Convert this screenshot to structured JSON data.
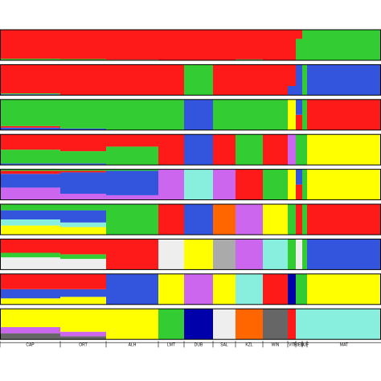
{
  "chart_data": {
    "type": "structure",
    "populations": [
      "CAP",
      "ORT",
      "ALH",
      "LMT",
      "DUB",
      "SAL",
      "KZL",
      "WIN",
      "VIT",
      "RIED",
      "SUF",
      "MAT"
    ],
    "sizes": [
      75,
      57,
      65,
      32,
      36,
      28,
      34,
      31,
      10,
      8,
      6,
      92
    ],
    "ylim": [
      0,
      100
    ],
    "panels": [
      [
        [
          [
            "#33cc33",
            5
          ],
          [
            "#ff1a1a",
            95
          ]
        ],
        [
          [
            "#33cc33",
            4
          ],
          [
            "#ff1a1a",
            96
          ]
        ],
        [
          [
            "#33cc33",
            2
          ],
          [
            "#ff1a1a",
            98
          ]
        ],
        [
          [
            "#ff1a1a",
            100
          ]
        ],
        [
          [
            "#ff1a1a",
            100
          ]
        ],
        [
          [
            "#ff1a1a",
            100
          ]
        ],
        [
          [
            "#33cc33",
            3
          ],
          [
            "#ff1a1a",
            97
          ]
        ],
        [
          [
            "#ff1a1a",
            100
          ]
        ],
        [
          [
            "#ff1a1a",
            100
          ]
        ],
        [
          [
            "#33cc33",
            70
          ],
          [
            "#ff1a1a",
            30
          ]
        ],
        [
          [
            "#33cc33",
            100
          ]
        ],
        [
          [
            "#33cc33",
            100
          ]
        ]
      ],
      [
        [
          [
            "#3355dd",
            3
          ],
          [
            "#33cc33",
            3
          ],
          [
            "#ff1a1a",
            94
          ]
        ],
        [
          [
            "#ff1a1a",
            100
          ]
        ],
        [
          [
            "#ff1a1a",
            100
          ]
        ],
        [
          [
            "#ff1a1a",
            100
          ]
        ],
        [
          [
            "#33cc33",
            100
          ]
        ],
        [
          [
            "#ff1a1a",
            100
          ]
        ],
        [
          [
            "#ff1a1a",
            100
          ]
        ],
        [
          [
            "#ff1a1a",
            100
          ]
        ],
        [
          [
            "#3355dd",
            30
          ],
          [
            "#ff1a1a",
            70
          ]
        ],
        [
          [
            "#3355dd",
            100
          ]
        ],
        [
          [
            "#33cc33",
            100
          ]
        ],
        [
          [
            "#3355dd",
            100
          ]
        ]
      ],
      [
        [
          [
            "#3355dd",
            8
          ],
          [
            "#ff1a1a",
            5
          ],
          [
            "#33cc33",
            87
          ]
        ],
        [
          [
            "#3355dd",
            5
          ],
          [
            "#33cc33",
            95
          ]
        ],
        [
          [
            "#33cc33",
            100
          ]
        ],
        [
          [
            "#33cc33",
            100
          ]
        ],
        [
          [
            "#3355dd",
            100
          ]
        ],
        [
          [
            "#33cc33",
            100
          ]
        ],
        [
          [
            "#33cc33",
            100
          ]
        ],
        [
          [
            "#33cc33",
            100
          ]
        ],
        [
          [
            "#ffff00",
            100
          ]
        ],
        [
          [
            "#ff1a1a",
            50
          ],
          [
            "#3355dd",
            50
          ]
        ],
        [
          [
            "#33cc33",
            100
          ]
        ],
        [
          [
            "#ff1a1a",
            100
          ]
        ]
      ],
      [
        [
          [
            "#3355dd",
            5
          ],
          [
            "#33cc33",
            45
          ],
          [
            "#ff1a1a",
            50
          ]
        ],
        [
          [
            "#3355dd",
            5
          ],
          [
            "#33cc33",
            40
          ],
          [
            "#ff1a1a",
            55
          ]
        ],
        [
          [
            "#33cc33",
            60
          ],
          [
            "#ff1a1a",
            40
          ]
        ],
        [
          [
            "#ff1a1a",
            100
          ]
        ],
        [
          [
            "#3355dd",
            100
          ]
        ],
        [
          [
            "#ff1a1a",
            100
          ]
        ],
        [
          [
            "#33cc33",
            100
          ]
        ],
        [
          [
            "#ff1a1a",
            100
          ]
        ],
        [
          [
            "#cc66ee",
            100
          ]
        ],
        [
          [
            "#33cc33",
            100
          ]
        ],
        [
          [
            "#33cc33",
            100
          ]
        ],
        [
          [
            "#ffff00",
            100
          ]
        ]
      ],
      [
        [
          [
            "#cc66ee",
            40
          ],
          [
            "#3355dd",
            45
          ],
          [
            "#ff1a1a",
            10
          ],
          [
            "#33cc33",
            5
          ]
        ],
        [
          [
            "#cc66ee",
            20
          ],
          [
            "#3355dd",
            70
          ],
          [
            "#ff1a1a",
            5
          ],
          [
            "#33cc33",
            5
          ]
        ],
        [
          [
            "#cc66ee",
            15
          ],
          [
            "#3355dd",
            80
          ],
          [
            "#33cc33",
            5
          ]
        ],
        [
          [
            "#cc66ee",
            100
          ]
        ],
        [
          [
            "#88eedd",
            100
          ]
        ],
        [
          [
            "#cc66ee",
            100
          ]
        ],
        [
          [
            "#ff1a1a",
            100
          ]
        ],
        [
          [
            "#33cc33",
            100
          ]
        ],
        [
          [
            "#ffff00",
            100
          ]
        ],
        [
          [
            "#ff1a1a",
            50
          ],
          [
            "#3355dd",
            50
          ]
        ],
        [
          [
            "#33cc33",
            100
          ]
        ],
        [
          [
            "#ffff00",
            100
          ]
        ]
      ],
      [
        [
          [
            "#ffff00",
            30
          ],
          [
            "#88eedd",
            20
          ],
          [
            "#3355dd",
            30
          ],
          [
            "#33cc33",
            20
          ]
        ],
        [
          [
            "#ffff00",
            25
          ],
          [
            "#88eedd",
            15
          ],
          [
            "#3355dd",
            40
          ],
          [
            "#33cc33",
            20
          ]
        ],
        [
          [
            "#33cc33",
            100
          ]
        ],
        [
          [
            "#ff1a1a",
            100
          ]
        ],
        [
          [
            "#3355dd",
            100
          ]
        ],
        [
          [
            "#ff6600",
            100
          ]
        ],
        [
          [
            "#cc66ee",
            100
          ]
        ],
        [
          [
            "#ffff00",
            100
          ]
        ],
        [
          [
            "#33cc33",
            100
          ]
        ],
        [
          [
            "#ff1a1a",
            100
          ]
        ],
        [
          [
            "#33cc33",
            100
          ]
        ],
        [
          [
            "#ff1a1a",
            100
          ]
        ]
      ],
      [
        [
          [
            "#eeeeee",
            40
          ],
          [
            "#33cc33",
            15
          ],
          [
            "#ff1a1a",
            45
          ]
        ],
        [
          [
            "#eeeeee",
            35
          ],
          [
            "#33cc33",
            15
          ],
          [
            "#ff1a1a",
            50
          ]
        ],
        [
          [
            "#ff1a1a",
            100
          ]
        ],
        [
          [
            "#eeeeee",
            100
          ]
        ],
        [
          [
            "#ffff00",
            100
          ]
        ],
        [
          [
            "#aaaaaa",
            100
          ]
        ],
        [
          [
            "#cc66ee",
            100
          ]
        ],
        [
          [
            "#88eedd",
            100
          ]
        ],
        [
          [
            "#33cc33",
            100
          ]
        ],
        [
          [
            "#eeeeee",
            100
          ]
        ],
        [
          [
            "#33cc33",
            100
          ]
        ],
        [
          [
            "#3355dd",
            100
          ]
        ]
      ],
      [
        [
          [
            "#ffff00",
            20
          ],
          [
            "#3355dd",
            30
          ],
          [
            "#ff1a1a",
            50
          ]
        ],
        [
          [
            "#ffff00",
            25
          ],
          [
            "#3355dd",
            25
          ],
          [
            "#ff1a1a",
            50
          ]
        ],
        [
          [
            "#3355dd",
            100
          ]
        ],
        [
          [
            "#ffff00",
            100
          ]
        ],
        [
          [
            "#cc66ee",
            100
          ]
        ],
        [
          [
            "#ffff00",
            100
          ]
        ],
        [
          [
            "#88eedd",
            100
          ]
        ],
        [
          [
            "#ff1a1a",
            100
          ]
        ],
        [
          [
            "#0000aa",
            100
          ]
        ],
        [
          [
            "#33cc33",
            100
          ]
        ],
        [
          [
            "#33cc33",
            100
          ]
        ],
        [
          [
            "#ffff00",
            100
          ]
        ]
      ],
      [
        [
          [
            "#666666",
            20
          ],
          [
            "#cc66ee",
            20
          ],
          [
            "#ffff00",
            60
          ]
        ],
        [
          [
            "#666666",
            10
          ],
          [
            "#cc66ee",
            15
          ],
          [
            "#ffff00",
            75
          ]
        ],
        [
          [
            "#ffff00",
            100
          ]
        ],
        [
          [
            "#33cc33",
            100
          ]
        ],
        [
          [
            "#0000aa",
            100
          ]
        ],
        [
          [
            "#eeeeee",
            100
          ]
        ],
        [
          [
            "#ff6600",
            100
          ]
        ],
        [
          [
            "#666666",
            100
          ]
        ],
        [
          [
            "#ff1a1a",
            100
          ]
        ],
        [
          [
            "#88eedd",
            100
          ]
        ],
        [
          [
            "#88eedd",
            100
          ]
        ],
        [
          [
            "#88eedd",
            100
          ]
        ]
      ]
    ]
  }
}
